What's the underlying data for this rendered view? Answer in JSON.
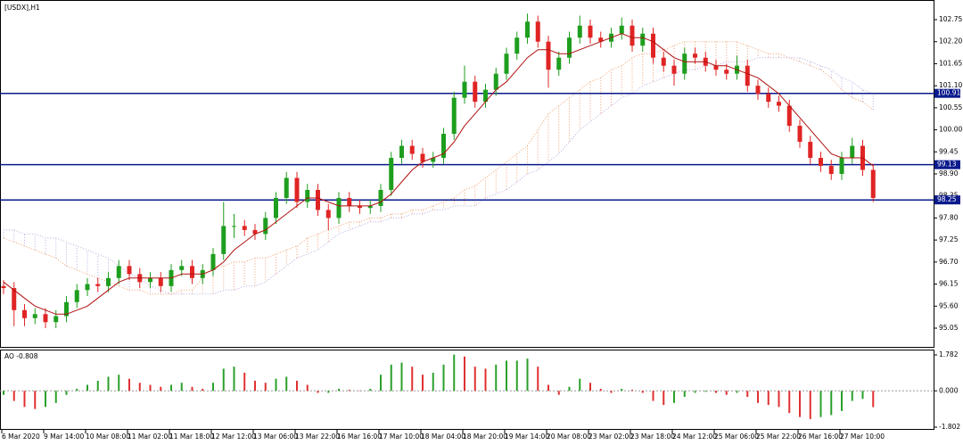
{
  "chart_data": {
    "type": "candlestick",
    "title": "[USDX],H1",
    "categories": [
      "6 Mar 2020",
      null,
      null,
      null,
      "9 Mar 14:00",
      null,
      null,
      null,
      "10 Mar 08:00",
      null,
      null,
      null,
      "11 Mar 02:00",
      null,
      null,
      null,
      "11 Mar 18:00",
      null,
      null,
      null,
      "12 Mar 12:00",
      null,
      null,
      null,
      "13 Mar 06:00",
      null,
      null,
      null,
      "13 Mar 22:00",
      null,
      null,
      null,
      "16 Mar 16:00",
      null,
      null,
      null,
      "17 Mar 10:00",
      null,
      null,
      null,
      "18 Mar 04:00",
      null,
      null,
      null,
      "18 Mar 20:00",
      null,
      null,
      null,
      "19 Mar 14:00",
      null,
      null,
      null,
      "20 Mar 08:00",
      null,
      null,
      null,
      "23 Mar 02:00",
      null,
      null,
      null,
      "23 Mar 18:00",
      null,
      null,
      null,
      "24 Mar 12:00",
      null,
      null,
      null,
      "25 Mar 06:00",
      null,
      null,
      null,
      "25 Mar 22:00",
      null,
      null,
      null,
      "26 Mar 16:00",
      null,
      null,
      null,
      "27 Mar 10:00",
      null,
      null,
      null
    ],
    "open": [
      96.1,
      96.05,
      95.5,
      95.3,
      95.4,
      95.2,
      95.35,
      95.7,
      96.0,
      96.15,
      96.1,
      96.3,
      96.6,
      96.4,
      96.2,
      96.3,
      96.1,
      96.5,
      96.6,
      96.3,
      96.5,
      96.9,
      97.6,
      97.6,
      97.5,
      97.4,
      97.8,
      98.3,
      98.8,
      98.2,
      98.5,
      98.0,
      97.8,
      98.3,
      98.1,
      98.05,
      98.1,
      98.5,
      99.3,
      99.6,
      99.4,
      99.2,
      99.3,
      99.9,
      100.8,
      101.2,
      100.7,
      101.0,
      101.4,
      101.9,
      102.3,
      102.7,
      102.2,
      101.5,
      101.8,
      102.3,
      102.6,
      102.3,
      102.2,
      102.4,
      102.6,
      102.1,
      102.4,
      101.8,
      101.6,
      101.4,
      101.9,
      101.8,
      101.6,
      101.5,
      101.4,
      101.6,
      101.1,
      100.9,
      100.7,
      100.6,
      100.1,
      99.7,
      99.3,
      99.1,
      98.9,
      99.3,
      99.6,
      99.0
    ],
    "high": [
      96.25,
      96.2,
      95.65,
      95.55,
      95.55,
      95.5,
      95.85,
      96.15,
      96.3,
      96.3,
      96.45,
      96.75,
      96.75,
      96.55,
      96.45,
      96.45,
      96.65,
      96.75,
      96.75,
      96.65,
      97.05,
      98.2,
      97.9,
      97.75,
      97.65,
      97.95,
      98.45,
      98.95,
      98.95,
      98.65,
      98.65,
      98.15,
      98.45,
      98.45,
      98.25,
      98.25,
      98.65,
      99.45,
      99.75,
      99.75,
      99.55,
      99.45,
      100.05,
      100.95,
      101.6,
      101.35,
      101.15,
      101.55,
      102.05,
      102.45,
      102.9,
      102.85,
      102.35,
      101.95,
      102.45,
      102.85,
      102.75,
      102.45,
      102.55,
      102.8,
      102.75,
      102.55,
      102.55,
      101.95,
      101.75,
      102.05,
      102.05,
      101.95,
      101.75,
      101.65,
      101.85,
      101.75,
      101.25,
      101.05,
      100.85,
      100.75,
      100.25,
      99.85,
      99.45,
      99.25,
      99.45,
      99.8,
      99.75,
      99.15
    ],
    "low": [
      95.9,
      95.1,
      95.1,
      95.15,
      95.05,
      95.05,
      95.2,
      95.55,
      95.85,
      95.95,
      95.95,
      96.15,
      96.25,
      96.05,
      96.05,
      95.95,
      95.95,
      96.35,
      96.15,
      96.15,
      96.35,
      96.75,
      97.3,
      97.35,
      97.25,
      97.25,
      97.65,
      98.15,
      98.05,
      98.05,
      97.85,
      97.5,
      97.65,
      97.95,
      97.9,
      97.9,
      97.95,
      98.35,
      99.15,
      99.25,
      99.05,
      99.05,
      99.15,
      99.75,
      100.65,
      100.55,
      100.55,
      100.85,
      101.25,
      101.75,
      102.15,
      102.05,
      101.05,
      101.35,
      101.65,
      102.15,
      102.15,
      102.05,
      102.05,
      102.25,
      101.95,
      101.95,
      101.65,
      101.45,
      101.1,
      101.25,
      101.65,
      101.45,
      101.35,
      101.25,
      101.25,
      100.95,
      100.75,
      100.55,
      100.45,
      99.95,
      99.55,
      99.15,
      98.95,
      98.75,
      98.75,
      99.15,
      98.85,
      98.2
    ],
    "close": [
      96.05,
      95.5,
      95.3,
      95.4,
      95.2,
      95.35,
      95.7,
      96.0,
      96.15,
      96.1,
      96.3,
      96.6,
      96.4,
      96.2,
      96.3,
      96.1,
      96.5,
      96.6,
      96.3,
      96.5,
      96.9,
      97.6,
      97.6,
      97.5,
      97.4,
      97.8,
      98.3,
      98.8,
      98.2,
      98.5,
      98.0,
      97.8,
      98.3,
      98.1,
      98.05,
      98.1,
      98.5,
      99.3,
      99.6,
      99.4,
      99.2,
      99.3,
      99.9,
      100.8,
      101.2,
      100.7,
      101.0,
      101.4,
      101.9,
      102.3,
      102.7,
      102.2,
      101.5,
      101.8,
      102.3,
      102.6,
      102.3,
      102.2,
      102.4,
      102.6,
      102.1,
      102.4,
      101.8,
      101.6,
      101.4,
      101.9,
      101.8,
      101.6,
      101.5,
      101.4,
      101.6,
      101.1,
      100.9,
      100.7,
      100.6,
      100.1,
      99.7,
      99.3,
      99.1,
      98.9,
      99.3,
      99.6,
      99.0,
      98.3
    ],
    "up_color": "#1e9e1e",
    "down_color": "#e02424",
    "ma": [
      96.2,
      96.0,
      95.8,
      95.6,
      95.5,
      95.4,
      95.4,
      95.5,
      95.6,
      95.8,
      96.0,
      96.2,
      96.3,
      96.3,
      96.3,
      96.3,
      96.3,
      96.4,
      96.4,
      96.4,
      96.5,
      96.7,
      97.0,
      97.2,
      97.4,
      97.5,
      97.7,
      97.9,
      98.1,
      98.3,
      98.3,
      98.2,
      98.1,
      98.1,
      98.1,
      98.1,
      98.2,
      98.4,
      98.7,
      99.0,
      99.2,
      99.3,
      99.4,
      99.7,
      100.1,
      100.4,
      100.7,
      101.0,
      101.2,
      101.5,
      101.8,
      102.0,
      102.0,
      101.9,
      101.9,
      102.0,
      102.1,
      102.2,
      102.3,
      102.4,
      102.3,
      102.3,
      102.2,
      102.0,
      101.8,
      101.7,
      101.7,
      101.7,
      101.6,
      101.6,
      101.5,
      101.4,
      101.3,
      101.1,
      100.9,
      100.6,
      100.3,
      100.0,
      99.7,
      99.4,
      99.3,
      99.3,
      99.3,
      99.1
    ],
    "ma_color": "#b01010",
    "cloud": {
      "span_a": [
        97.3,
        97.2,
        97.1,
        97.0,
        96.9,
        96.8,
        96.6,
        96.5,
        96.4,
        96.3,
        96.2,
        96.1,
        96.0,
        96.0,
        95.9,
        95.9,
        95.9,
        96.0,
        96.0,
        96.3,
        96.6,
        96.6,
        96.7,
        96.7,
        96.8,
        96.8,
        96.9,
        97.0,
        97.1,
        97.3,
        97.4,
        97.5,
        97.6,
        97.7,
        97.7,
        97.8,
        97.8,
        97.9,
        97.9,
        98.0,
        98.0,
        98.1,
        98.2,
        98.3,
        98.5,
        98.6,
        98.8,
        99.0,
        99.2,
        99.4,
        99.6,
        100.0,
        100.4,
        100.6,
        100.8,
        101.0,
        101.2,
        101.3,
        101.5,
        101.6,
        101.8,
        101.9,
        101.9,
        102.0,
        102.1,
        102.2,
        102.2,
        102.2,
        102.2,
        102.2,
        102.2,
        102.1,
        102.0,
        101.9,
        101.9,
        101.8,
        101.7,
        101.6,
        101.5,
        101.3,
        101.0,
        100.8,
        100.7,
        100.5
      ],
      "span_b": [
        97.5,
        97.5,
        97.4,
        97.4,
        97.3,
        97.3,
        97.2,
        97.1,
        97.0,
        96.9,
        96.8,
        96.6,
        96.4,
        96.3,
        96.1,
        96.0,
        95.9,
        95.9,
        95.9,
        95.9,
        95.9,
        96.0,
        96.0,
        96.1,
        96.1,
        96.2,
        96.4,
        96.6,
        96.8,
        96.9,
        97.0,
        97.2,
        97.4,
        97.5,
        97.6,
        97.7,
        97.7,
        97.8,
        97.8,
        97.9,
        97.9,
        98.0,
        98.0,
        98.1,
        98.1,
        98.1,
        98.3,
        98.4,
        98.5,
        98.7,
        98.9,
        99.0,
        99.2,
        99.4,
        99.7,
        100.0,
        100.2,
        100.4,
        100.6,
        100.8,
        100.9,
        101.1,
        101.2,
        101.3,
        101.4,
        101.5,
        101.5,
        101.6,
        101.6,
        101.7,
        101.7,
        101.7,
        101.8,
        101.8,
        101.8,
        101.8,
        101.8,
        101.7,
        101.6,
        101.5,
        101.3,
        101.2,
        101.0,
        100.9
      ],
      "color_a": "#f0a070",
      "color_b": "#b8a8e0"
    },
    "ylim": [
      94.56,
      103.24
    ],
    "yticks": [
      102.75,
      {
        "value": 102.2,
        "label": "102.20"
      },
      101.65,
      {
        "value": 101.1,
        "label": "101.10"
      },
      100.55,
      {
        "value": 100,
        "label": "100.00"
      },
      99.45,
      {
        "value": 98.9,
        "label": "98.90"
      },
      98.35,
      {
        "value": 97.8,
        "label": "97.80"
      },
      97.25,
      {
        "value": 96.7,
        "label": "96.70"
      },
      96.15,
      {
        "value": 95.6,
        "label": "95.60"
      },
      95.05
    ],
    "levels": [
      100.91,
      99.13,
      98.25
    ],
    "level_color": "#0a1a8c",
    "ao": {
      "name": "AO",
      "values": [
        -0.2,
        -0.5,
        -0.8,
        -0.9,
        -0.8,
        -0.6,
        -0.2,
        0.1,
        0.3,
        0.5,
        0.7,
        0.8,
        0.6,
        0.4,
        0.3,
        0.2,
        0.3,
        0.4,
        0.2,
        0.1,
        0.4,
        1.1,
        1.2,
        0.9,
        0.5,
        0.4,
        0.6,
        0.7,
        0.5,
        0.3,
        -0.1,
        -0.1,
        0.1,
        0.05,
        0.02,
        0.1,
        0.8,
        1.3,
        1.4,
        1.2,
        0.8,
        0.9,
        1.3,
        1.8,
        1.7,
        1.2,
        1.1,
        1.3,
        1.5,
        1.5,
        1.6,
        1.2,
        0.3,
        -0.2,
        0.2,
        0.6,
        0.4,
        0.1,
        -0.1,
        0.1,
        0.05,
        -0.1,
        -0.5,
        -0.7,
        -0.6,
        -0.3,
        -0.1,
        -0.05,
        -0.1,
        -0.2,
        -0.1,
        -0.3,
        -0.6,
        -0.7,
        -0.8,
        -1.1,
        -1.3,
        -1.4,
        -1.3,
        -1.2,
        -1.0,
        -0.5,
        -0.4,
        -0.808
      ],
      "ylim": [
        -1.935,
        2.047
      ],
      "yticks": [
        1.782,
        {
          "value": 0,
          "label": "0.000"
        },
        -1.802
      ],
      "up_color": "#2aa02a",
      "down_color": "#e03030"
    }
  }
}
